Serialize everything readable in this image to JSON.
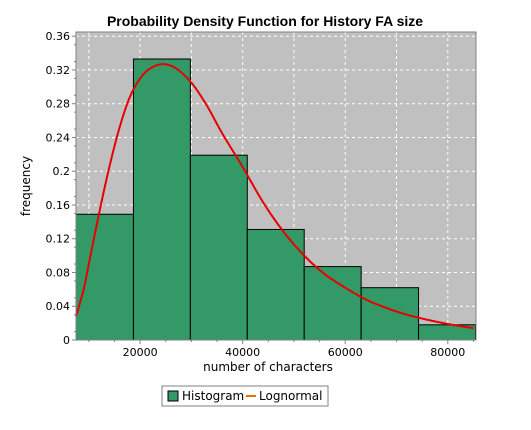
{
  "chart_data": {
    "type": "bar",
    "title": "Probability Density Function for History FA size",
    "xlabel": "number of characters",
    "ylabel": "frequency",
    "xlim": [
      7500,
      85500
    ],
    "ylim": [
      0,
      0.365
    ],
    "x_ticks": [
      20000,
      40000,
      60000,
      80000
    ],
    "y_ticks": [
      0,
      0.04,
      0.08,
      0.12,
      0.16,
      0.2,
      0.24,
      0.28,
      0.32,
      0.36
    ],
    "x_tick_labels": [
      "20000",
      "40000",
      "60000",
      "80000"
    ],
    "y_tick_labels": [
      "0",
      "0.04",
      "0.08",
      "0.12",
      "0.16",
      "0.2",
      "0.24",
      "0.28",
      "0.32",
      "0.36"
    ],
    "grid": true,
    "legend_position": "bottom-center",
    "colors": {
      "plot_background": "#c0c0c0",
      "bar_fill": "#339966",
      "bar_stroke": "#000000",
      "curve": "#e60000",
      "grid": "#ffffff"
    },
    "series": [
      {
        "name": "Histogram",
        "kind": "histogram",
        "bins": [
          {
            "x0": 7500,
            "x1": 18700,
            "value": 0.149
          },
          {
            "x0": 18700,
            "x1": 29800,
            "value": 0.333
          },
          {
            "x0": 29800,
            "x1": 40900,
            "value": 0.219
          },
          {
            "x0": 40900,
            "x1": 52000,
            "value": 0.131
          },
          {
            "x0": 52000,
            "x1": 63100,
            "value": 0.087
          },
          {
            "x0": 63100,
            "x1": 74300,
            "value": 0.062
          },
          {
            "x0": 74300,
            "x1": 85400,
            "value": 0.018
          }
        ]
      },
      {
        "name": "Lognormal",
        "kind": "line",
        "points": [
          [
            7500,
            0.028
          ],
          [
            9000,
            0.06
          ],
          [
            10000,
            0.09
          ],
          [
            12000,
            0.15
          ],
          [
            14000,
            0.205
          ],
          [
            16000,
            0.252
          ],
          [
            18000,
            0.288
          ],
          [
            20000,
            0.31
          ],
          [
            22000,
            0.322
          ],
          [
            24500,
            0.327
          ],
          [
            27000,
            0.322
          ],
          [
            30000,
            0.305
          ],
          [
            33000,
            0.278
          ],
          [
            36000,
            0.245
          ],
          [
            40000,
            0.205
          ],
          [
            44000,
            0.163
          ],
          [
            48000,
            0.128
          ],
          [
            52000,
            0.1
          ],
          [
            56000,
            0.078
          ],
          [
            60000,
            0.062
          ],
          [
            64000,
            0.048
          ],
          [
            68000,
            0.038
          ],
          [
            72000,
            0.03
          ],
          [
            76000,
            0.024
          ],
          [
            80000,
            0.019
          ],
          [
            85000,
            0.014
          ]
        ]
      }
    ]
  }
}
